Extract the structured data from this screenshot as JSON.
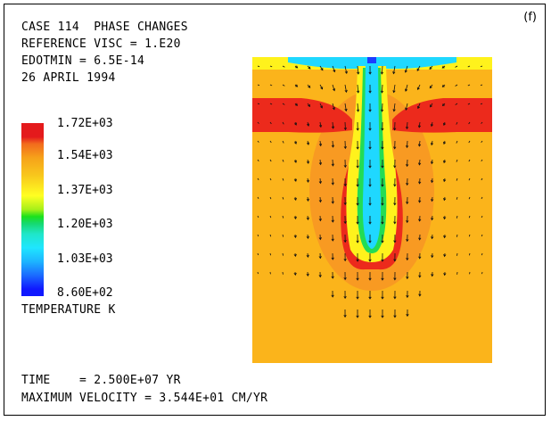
{
  "header": {
    "line1": "CASE 114  PHASE CHANGES",
    "line2": "REFERENCE VISC = 1.E20",
    "line3": "EDOTMIN = 6.5E-14",
    "line4": "26 APRIL 1994"
  },
  "panel_label": "(f)",
  "legend": {
    "ticks": [
      "1.72E+03",
      "1.54E+03",
      "1.37E+03",
      "1.20E+03",
      "1.03E+03",
      "8.60E+02"
    ],
    "title": "TEMPERATURE K",
    "colors": [
      "#e41a1c",
      "#f6a21a",
      "#ffff22",
      "#1ce11c",
      "#1fe6ff",
      "#1018ff"
    ]
  },
  "footer": {
    "time": "TIME    = 2.500E+07 YR",
    "velocity": "MAXIMUM VELOCITY = 3.544E+01 CM/YR"
  },
  "field_colors": {
    "background": "#fbb41b",
    "warm": "#f89a22",
    "hot": "#ec2a1c",
    "yellow": "#fff21c",
    "green": "#22dc55",
    "cyan": "#1fd8ff",
    "blue": "#1c3cff",
    "arrow": "#111111"
  }
}
